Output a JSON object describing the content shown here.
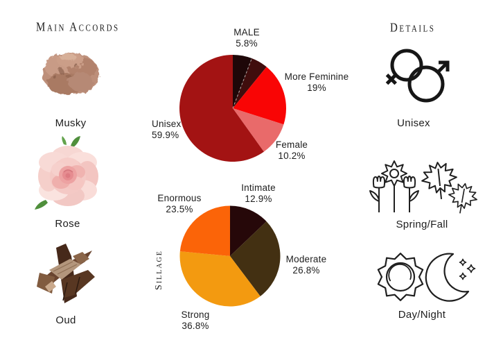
{
  "page": {
    "background": "#ffffff",
    "text_color": "#1d1d1d"
  },
  "accords": {
    "title": "Main Accords",
    "items": [
      {
        "name": "Musky",
        "icon": "musk-fluff-image"
      },
      {
        "name": "Rose",
        "icon": "pink-rose-image"
      },
      {
        "name": "Oud",
        "icon": "oud-wood-image"
      }
    ]
  },
  "details": {
    "title": "Details",
    "items": [
      {
        "label": "Unisex",
        "icon": "unisex-gender-icon"
      },
      {
        "label": "Spring/Fall",
        "icon": "spring-flowers-maple-leaves-icon"
      },
      {
        "label": "Day/Night",
        "icon": "sun-and-moon-icon"
      }
    ]
  },
  "chart_data": [
    {
      "type": "pie",
      "name": "gender-votes",
      "direction": "clockwise",
      "start_angle_deg": 0,
      "legend_position": "around-slices",
      "dashed_divider_after_first_slice": true,
      "slices": [
        {
          "label": "MALE",
          "value": 5.8,
          "value_text": "5.8%",
          "color": "#1e0708"
        },
        {
          "label": "",
          "value": 5.1,
          "value_text": "",
          "color": "#400d0d"
        },
        {
          "label": "More Feminine",
          "value": 19,
          "value_text": "19%",
          "color": "#f90505"
        },
        {
          "label": "Female",
          "value": 10.2,
          "value_text": "10.2%",
          "color": "#e96a6a"
        },
        {
          "label": "Unisex",
          "value": 59.9,
          "value_text": "59.9%",
          "color": "#a31313"
        }
      ]
    },
    {
      "type": "pie",
      "name": "sillage-votes",
      "axis_label": "Sillage",
      "direction": "clockwise",
      "start_angle_deg": 0,
      "legend_position": "around-slices",
      "slices": [
        {
          "label": "Intimate",
          "value": 12.9,
          "value_text": "12.9%",
          "color": "#260809"
        },
        {
          "label": "Moderate",
          "value": 26.8,
          "value_text": "26.8%",
          "color": "#433012"
        },
        {
          "label": "Strong",
          "value": 36.8,
          "value_text": "36.8%",
          "color": "#f39a10"
        },
        {
          "label": "Enormous",
          "value": 23.5,
          "value_text": "23.5%",
          "color": "#fb6408"
        }
      ]
    }
  ]
}
